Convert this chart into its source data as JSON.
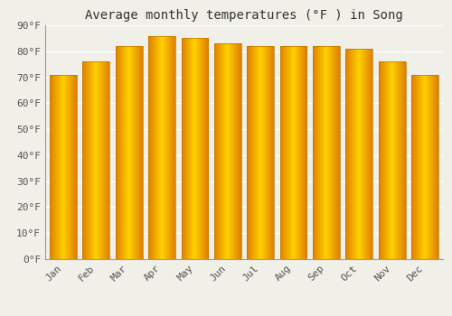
{
  "title": "Average monthly temperatures (°F ) in Song",
  "months": [
    "Jan",
    "Feb",
    "Mar",
    "Apr",
    "May",
    "Jun",
    "Jul",
    "Aug",
    "Sep",
    "Oct",
    "Nov",
    "Dec"
  ],
  "values": [
    71,
    76,
    82,
    86,
    85,
    83,
    82,
    82,
    82,
    81,
    76,
    71
  ],
  "bar_color_center": "#FFD000",
  "bar_color_edge": "#E08000",
  "ylim": [
    0,
    90
  ],
  "yticks": [
    0,
    10,
    20,
    30,
    40,
    50,
    60,
    70,
    80,
    90
  ],
  "ytick_labels": [
    "0°F",
    "10°F",
    "20°F",
    "30°F",
    "40°F",
    "50°F",
    "60°F",
    "70°F",
    "80°F",
    "90°F"
  ],
  "background_color": "#f0efe8",
  "grid_color": "#ffffff",
  "title_fontsize": 10,
  "tick_fontsize": 8
}
